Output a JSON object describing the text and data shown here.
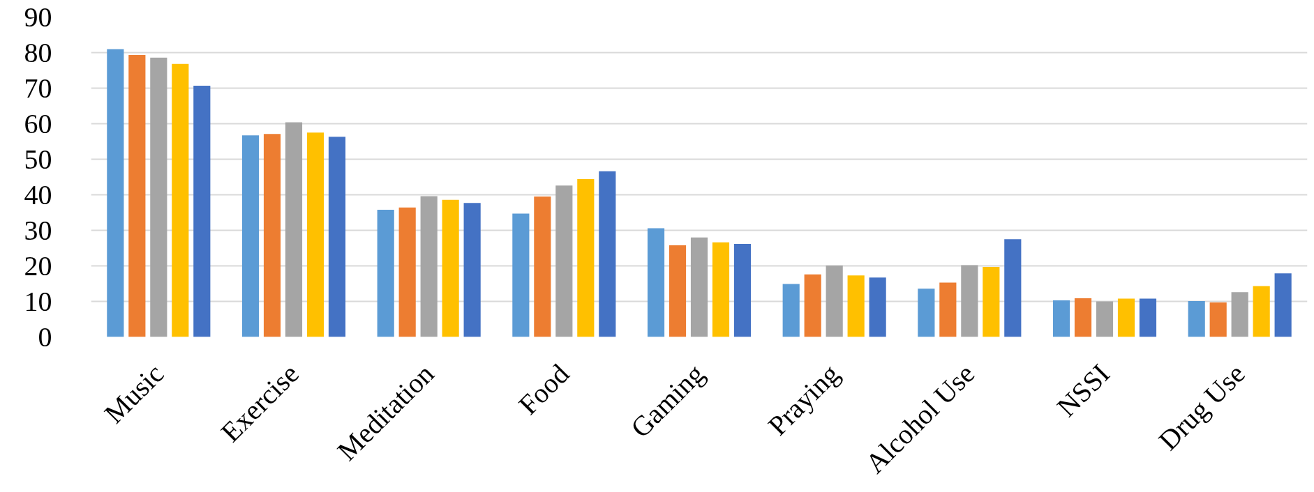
{
  "chart_data": {
    "type": "bar",
    "categories": [
      "Music",
      "Exercise",
      "Meditation",
      "Food",
      "Gaming",
      "Praying",
      "Alcohol Use",
      "NSSI",
      "Drug Use"
    ],
    "series": [
      {
        "color": "#5b9bd5",
        "values": [
          81.0,
          56.7,
          35.8,
          34.7,
          30.6,
          14.9,
          13.6,
          10.3,
          10.1
        ]
      },
      {
        "color": "#ed7d31",
        "values": [
          79.3,
          57.1,
          36.4,
          39.5,
          25.8,
          17.6,
          15.3,
          10.9,
          9.7
        ]
      },
      {
        "color": "#a5a5a5",
        "values": [
          78.6,
          60.4,
          39.6,
          42.6,
          28.0,
          20.1,
          20.2,
          10.0,
          12.6
        ]
      },
      {
        "color": "#ffc000",
        "values": [
          76.8,
          57.5,
          38.6,
          44.4,
          26.6,
          17.3,
          19.7,
          10.8,
          14.3
        ]
      },
      {
        "color": "#4472c4",
        "values": [
          70.7,
          56.3,
          37.7,
          46.6,
          26.2,
          16.7,
          27.5,
          10.8,
          17.9
        ]
      }
    ],
    "ylim": [
      0,
      90
    ],
    "yticks": [
      0,
      10,
      20,
      30,
      40,
      50,
      60,
      70,
      80,
      90
    ],
    "grid": "y"
  }
}
